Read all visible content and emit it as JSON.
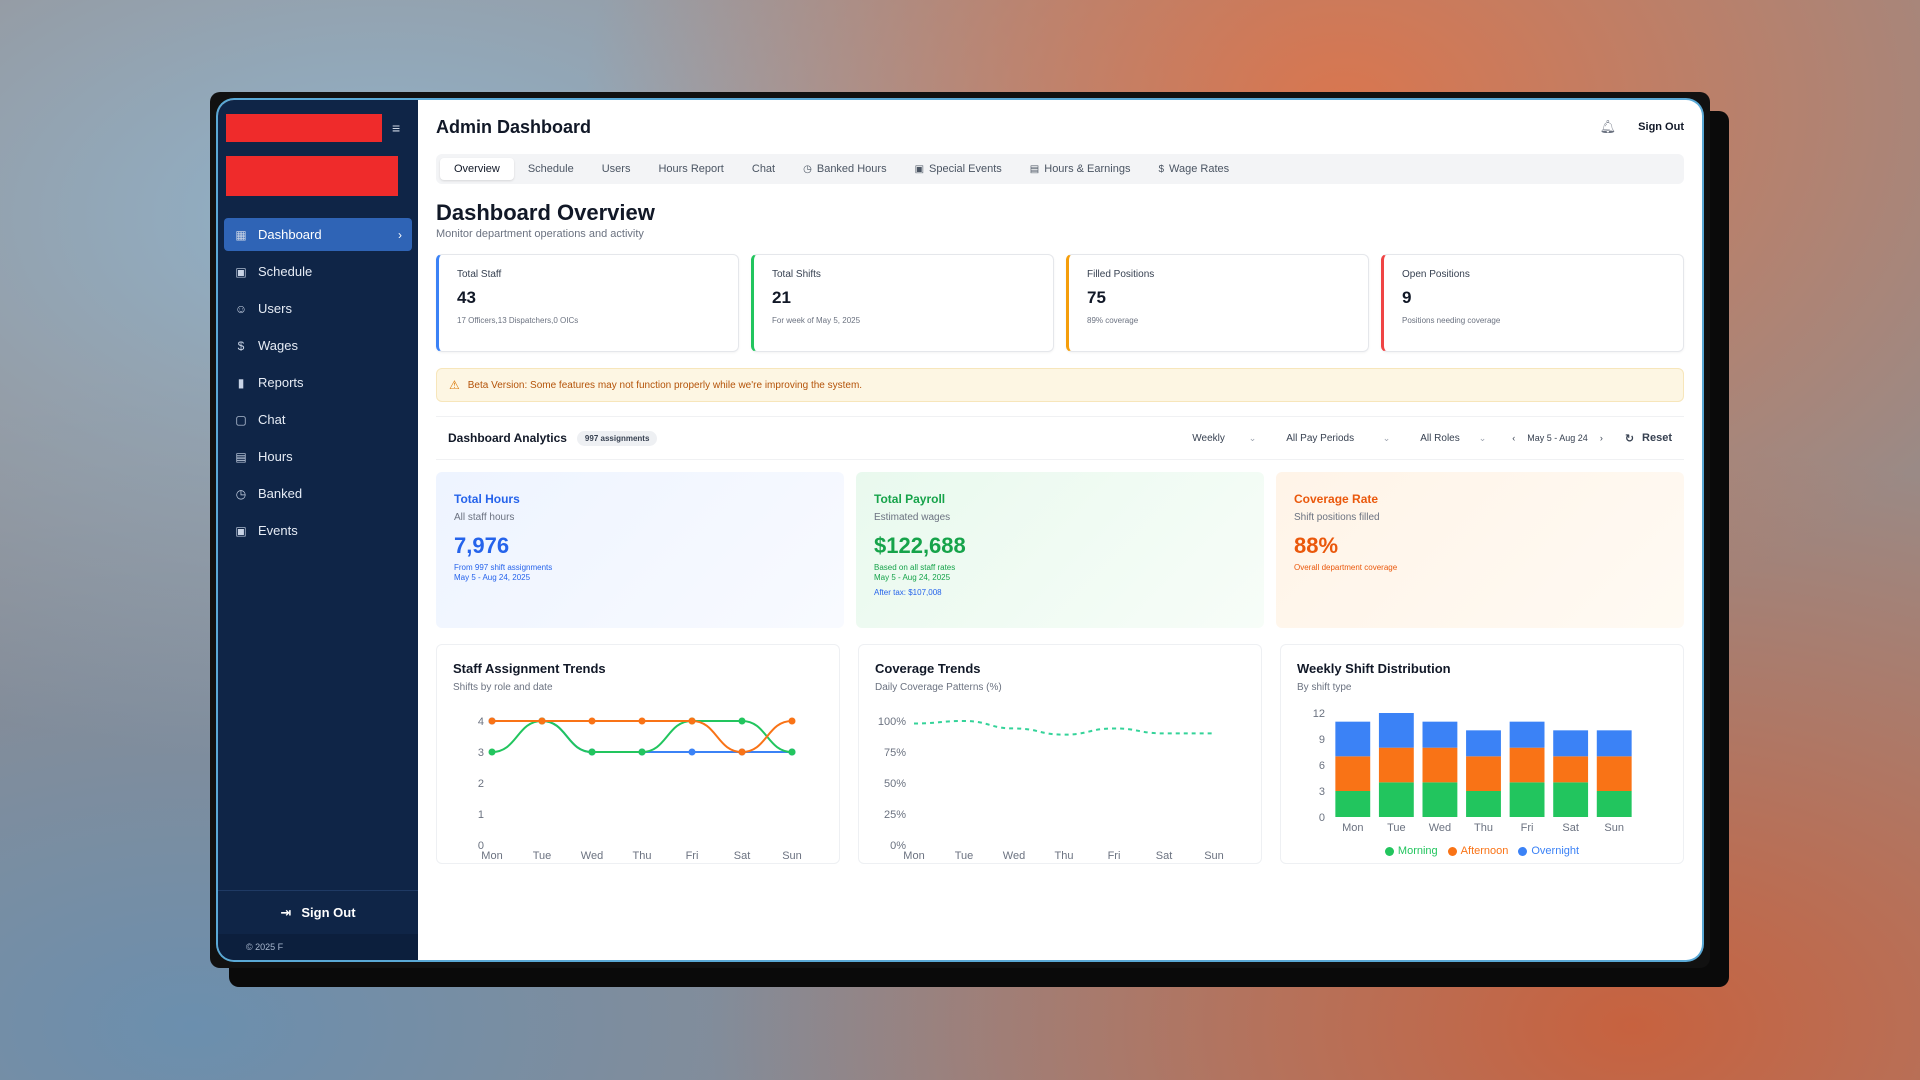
{
  "sidebar": {
    "items": [
      {
        "label": "Dashboard",
        "icon": "grid-icon",
        "glyph": "▦"
      },
      {
        "label": "Schedule",
        "icon": "calendar-icon",
        "glyph": "▣"
      },
      {
        "label": "Users",
        "icon": "users-icon",
        "glyph": "☺"
      },
      {
        "label": "Wages",
        "icon": "dollar-icon",
        "glyph": "$"
      },
      {
        "label": "Reports",
        "icon": "bar-chart-icon",
        "glyph": "▮"
      },
      {
        "label": "Chat",
        "icon": "message-icon",
        "glyph": "▢"
      },
      {
        "label": "Hours",
        "icon": "clipboard-icon",
        "glyph": "▤"
      },
      {
        "label": "Banked",
        "icon": "clock-icon",
        "glyph": "◷"
      },
      {
        "label": "Events",
        "icon": "calendar-icon",
        "glyph": "▣"
      }
    ],
    "sign_out": "Sign Out",
    "copyright": "© 2025 F"
  },
  "header": {
    "title": "Admin Dashboard",
    "sign_out": "Sign Out"
  },
  "tabs": [
    "Overview",
    "Schedule",
    "Users",
    "Hours Report",
    "Chat",
    "Banked Hours",
    "Special Events",
    "Hours & Earnings",
    "Wage Rates"
  ],
  "overview": {
    "title": "Dashboard Overview",
    "subtitle": "Monitor department operations and activity"
  },
  "stats": [
    {
      "label": "Total Staff",
      "value": "43",
      "note": "17 Officers,13 Dispatchers,0 OICs",
      "color": "#3b82f6"
    },
    {
      "label": "Total Shifts",
      "value": "21",
      "note": "For week of May 5, 2025",
      "color": "#22c55e"
    },
    {
      "label": "Filled Positions",
      "value": "75",
      "note": "89% coverage",
      "color": "#f59e0b"
    },
    {
      "label": "Open Positions",
      "value": "9",
      "note": "Positions needing coverage",
      "color": "#ef4444"
    }
  ],
  "beta": "Beta Version: Some features may not function properly while we're improving the system.",
  "analytics": {
    "title": "Dashboard Analytics",
    "badge": "997 assignments",
    "period": "Weekly",
    "pay_periods": "All Pay Periods",
    "roles": "All Roles",
    "date_range": "May 5 - Aug 24",
    "reset": "Reset"
  },
  "metrics": {
    "hours": {
      "label": "Total Hours",
      "sub": "All staff hours",
      "value": "7,976",
      "note1": "From 997 shift assignments",
      "note2": "May 5 - Aug 24, 2025"
    },
    "payroll": {
      "label": "Total Payroll",
      "sub": "Estimated wages",
      "value": "$122,688",
      "note1": "Based on all staff rates",
      "note2": "May 5 - Aug 24, 2025",
      "note3": "After tax: $107,008"
    },
    "coverage": {
      "label": "Coverage Rate",
      "sub": "Shift positions filled",
      "value": "88%",
      "note1": "Overall department coverage"
    }
  },
  "chart_data": [
    {
      "type": "line",
      "title": "Staff Assignment Trends",
      "subtitle": "Shifts by role and date",
      "categories": [
        "Mon",
        "Tue",
        "Wed",
        "Thu",
        "Fri",
        "Sat",
        "Sun"
      ],
      "ylim": [
        0,
        4
      ],
      "yticks": [
        0,
        1,
        2,
        3,
        4
      ],
      "series": [
        {
          "values": [
            4,
            4,
            3,
            3,
            3,
            3,
            3
          ],
          "color": "#3b82f6"
        },
        {
          "values": [
            3,
            4,
            3,
            3,
            4,
            4,
            3
          ],
          "color": "#22c55e"
        },
        {
          "values": [
            4,
            4,
            4,
            4,
            4,
            3,
            4
          ],
          "color": "#f97316"
        }
      ]
    },
    {
      "type": "line",
      "title": "Coverage Trends",
      "subtitle": "Daily Coverage Patterns (%)",
      "categories": [
        "Mon",
        "Tue",
        "Wed",
        "Thu",
        "Fri",
        "Sat",
        "Sun"
      ],
      "ylim": [
        0,
        100
      ],
      "yticks": [
        "0%",
        "25%",
        "50%",
        "75%",
        "100%"
      ],
      "series": [
        {
          "values": [
            98,
            100,
            94,
            89,
            94,
            90,
            90
          ],
          "color": "#34d399"
        }
      ]
    },
    {
      "type": "bar",
      "stacked": true,
      "title": "Weekly Shift Distribution",
      "subtitle": "By shift type",
      "categories": [
        "Mon",
        "Tue",
        "Wed",
        "Thu",
        "Fri",
        "Sat",
        "Sun"
      ],
      "ylim": [
        0,
        12
      ],
      "yticks": [
        0,
        3,
        6,
        9,
        12
      ],
      "series": [
        {
          "name": "Morning",
          "values": [
            3,
            4,
            4,
            3,
            4,
            4,
            3
          ],
          "color": "#22c55e"
        },
        {
          "name": "Afternoon",
          "values": [
            4,
            4,
            4,
            4,
            4,
            3,
            4
          ],
          "color": "#f97316"
        },
        {
          "name": "Overnight",
          "values": [
            4,
            4,
            3,
            3,
            3,
            3,
            3
          ],
          "color": "#3b82f6"
        }
      ]
    }
  ]
}
